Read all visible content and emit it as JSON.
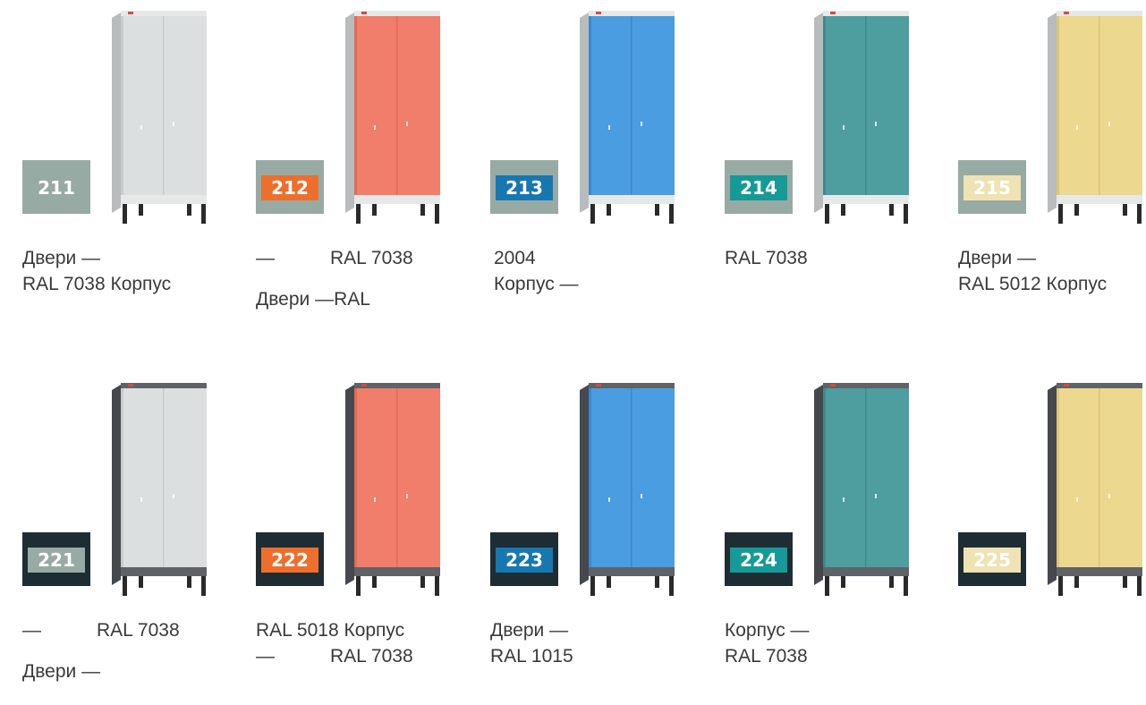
{
  "body_colors": {
    "light": "#e7e8e8",
    "light_side": "#b9bcbd",
    "dark": "#5f6368",
    "dark_side": "#45484c"
  },
  "rows": [
    {
      "badge_bg": "#98aaa4",
      "body": "light",
      "items": [
        {
          "code": "211",
          "door_color": "#dcdfdf",
          "door_shadow": "#c9cccd",
          "num_bg": "#98aaa4",
          "num_color": "#ffffff",
          "caption": [
            "Двери —",
            "RAL 7038 Корпус"
          ]
        },
        {
          "code": "212",
          "door_color": "#f17e6b",
          "door_shadow": "#e36a57",
          "num_bg": "#ee6f2c",
          "num_color": "#ffffff",
          "caption": [
            "—",
            "RAL 7038",
            "Двери —RAL"
          ]
        },
        {
          "code": "213",
          "door_color": "#4a9de0",
          "door_shadow": "#3b88cc",
          "num_bg": "#1777b1",
          "num_color": "#ffffff",
          "caption": [
            "2004",
            "Корпус —"
          ]
        },
        {
          "code": "214",
          "door_color": "#4e9d9f",
          "door_shadow": "#3f8a8c",
          "num_bg": "#159a97",
          "num_color": "#ffffff",
          "caption": [
            "RAL 7038"
          ]
        },
        {
          "code": "215",
          "door_color": "#ecd88f",
          "door_shadow": "#dbc57a",
          "num_bg": "#efe2b3",
          "num_color": "#ffffff",
          "caption": [
            "Двери —",
            "RAL 5012 Корпус"
          ]
        }
      ]
    },
    {
      "badge_bg": "#1d2d33",
      "body": "dark",
      "items": [
        {
          "code": "221",
          "door_color": "#dcdfdf",
          "door_shadow": "#c9cccd",
          "num_bg": "#98aaa4",
          "num_color": "#ffffff",
          "caption": [
            "—",
            "RAL 7038",
            "Двери —"
          ]
        },
        {
          "code": "222",
          "door_color": "#f17e6b",
          "door_shadow": "#e36a57",
          "num_bg": "#ee6f2c",
          "num_color": "#ffffff",
          "caption": [
            "RAL 5018 Корпус",
            "—",
            "RAL 7038"
          ]
        },
        {
          "code": "223",
          "door_color": "#4a9de0",
          "door_shadow": "#3b88cc",
          "num_bg": "#1777b1",
          "num_color": "#ffffff",
          "caption": [
            "Двери —",
            "RAL 1015"
          ]
        },
        {
          "code": "224",
          "door_color": "#4e9d9f",
          "door_shadow": "#3f8a8c",
          "num_bg": "#159a97",
          "num_color": "#ffffff",
          "caption": [
            "Корпус —",
            "RAL 7038"
          ]
        },
        {
          "code": "225",
          "door_color": "#ecd88f",
          "door_shadow": "#dbc57a",
          "num_bg": "#efe2b3",
          "num_color": "#ffffff",
          "caption": []
        }
      ]
    }
  ]
}
